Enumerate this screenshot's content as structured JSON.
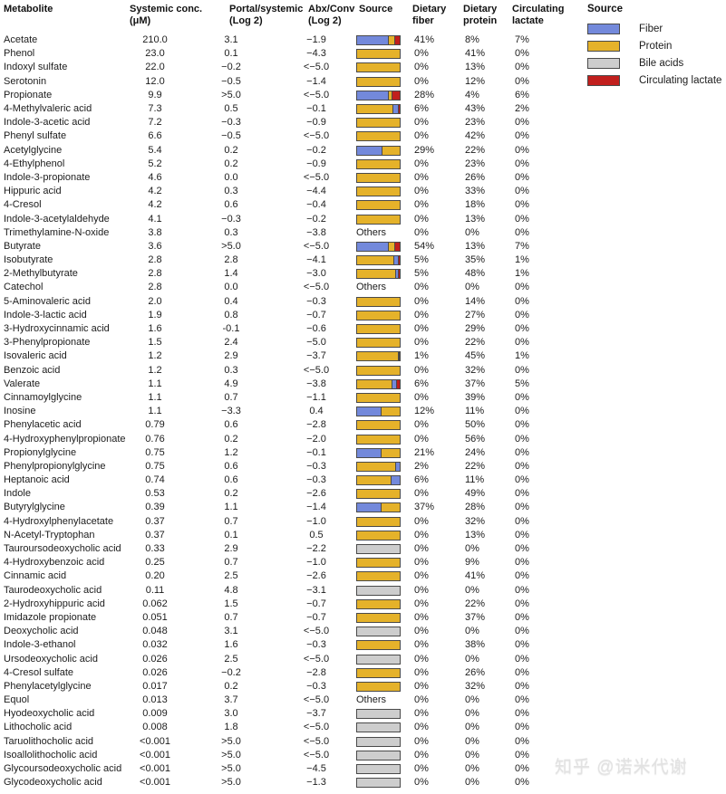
{
  "columns": [
    {
      "label": "Metabolite"
    },
    {
      "label": "Systemic conc.\n(μM)"
    },
    {
      "label": "Portal/systemic\n(Log 2)"
    },
    {
      "label": "Abx/Conv\n(Log 2)"
    },
    {
      "label": "Source"
    },
    {
      "label": "Dietary\nfiber"
    },
    {
      "label": "Dietary\nprotein"
    },
    {
      "label": "Circulating\nlactate"
    }
  ],
  "legend": {
    "title": "Source",
    "items": [
      {
        "label": "Fiber",
        "color": "#7389DB"
      },
      {
        "label": "Protein",
        "color": "#E5B22A"
      },
      {
        "label": "Bile acids",
        "color": "#CDCDCD"
      },
      {
        "label": "Circulating lactate",
        "color": "#C11F1D"
      }
    ]
  },
  "watermark": {
    "text": "知乎 @诺米代谢"
  },
  "chart_data": {
    "type": "table",
    "description": "Metabolite table with horizontal stacked source-fraction bars",
    "source_colors": {
      "fiber": "#7389DB",
      "protein": "#E5B22A",
      "bile": "#CDCDCD",
      "lactate": "#C11F1D"
    },
    "columns": [
      "Metabolite",
      "Systemic conc. (μM)",
      "Portal/systemic (Log 2)",
      "Abx/Conv (Log 2)",
      "Source",
      "Dietary fiber",
      "Dietary protein",
      "Circulating lactate"
    ],
    "rows": [
      {
        "name": "Acetate",
        "conc": "210.0",
        "portal": "3.1",
        "abx": "−1.9",
        "source": "bar",
        "segments": [
          [
            "fiber",
            72
          ],
          [
            "protein",
            15
          ],
          [
            "lactate",
            13
          ]
        ],
        "fiber": "41%",
        "protein": "8%",
        "lactate": "7%"
      },
      {
        "name": "Phenol",
        "conc": "23.0",
        "portal": "0.1",
        "abx": "−4.3",
        "source": "bar",
        "segments": [
          [
            "protein",
            100
          ]
        ],
        "fiber": "0%",
        "protein": "41%",
        "lactate": "0%"
      },
      {
        "name": "Indoxyl sulfate",
        "conc": "22.0",
        "portal": "−0.2",
        "abx": "<−5.0",
        "source": "bar",
        "segments": [
          [
            "protein",
            100
          ]
        ],
        "fiber": "0%",
        "protein": "13%",
        "lactate": "0%"
      },
      {
        "name": "Serotonin",
        "conc": "12.0",
        "portal": "−0.5",
        "abx": "−1.4",
        "source": "bar",
        "segments": [
          [
            "protein",
            100
          ]
        ],
        "fiber": "0%",
        "protein": "12%",
        "lactate": "0%"
      },
      {
        "name": "Propionate",
        "conc": "9.9",
        "portal": ">5.0",
        "abx": "<−5.0",
        "source": "bar",
        "segments": [
          [
            "fiber",
            72
          ],
          [
            "protein",
            8
          ],
          [
            "lactate",
            20
          ]
        ],
        "fiber": "28%",
        "protein": "4%",
        "lactate": "6%"
      },
      {
        "name": "4-Methylvaleric acid",
        "conc": "7.3",
        "portal": "0.5",
        "abx": "−0.1",
        "source": "bar",
        "segments": [
          [
            "protein",
            82
          ],
          [
            "fiber",
            13
          ],
          [
            "lactate",
            5
          ]
        ],
        "fiber": "6%",
        "protein": "43%",
        "lactate": "2%"
      },
      {
        "name": "Indole-3-acetic acid",
        "conc": "7.2",
        "portal": "−0.3",
        "abx": "−0.9",
        "source": "bar",
        "segments": [
          [
            "protein",
            100
          ]
        ],
        "fiber": "0%",
        "protein": "23%",
        "lactate": "0%"
      },
      {
        "name": "Phenyl sulfate",
        "conc": "6.6",
        "portal": "−0.5",
        "abx": "<−5.0",
        "source": "bar",
        "segments": [
          [
            "protein",
            100
          ]
        ],
        "fiber": "0%",
        "protein": "42%",
        "lactate": "0%"
      },
      {
        "name": "Acetylglycine",
        "conc": "5.4",
        "portal": "0.2",
        "abx": "−0.2",
        "source": "bar",
        "segments": [
          [
            "fiber",
            58
          ],
          [
            "protein",
            42
          ]
        ],
        "fiber": "29%",
        "protein": "22%",
        "lactate": "0%"
      },
      {
        "name": "4-Ethylphenol",
        "conc": "5.2",
        "portal": "0.2",
        "abx": "−0.9",
        "source": "bar",
        "segments": [
          [
            "protein",
            100
          ]
        ],
        "fiber": "0%",
        "protein": "23%",
        "lactate": "0%"
      },
      {
        "name": "Indole-3-propionate",
        "conc": "4.6",
        "portal": "0.0",
        "abx": "<−5.0",
        "source": "bar",
        "segments": [
          [
            "protein",
            100
          ]
        ],
        "fiber": "0%",
        "protein": "26%",
        "lactate": "0%"
      },
      {
        "name": "Hippuric acid",
        "conc": "4.2",
        "portal": "0.3",
        "abx": "−4.4",
        "source": "bar",
        "segments": [
          [
            "protein",
            100
          ]
        ],
        "fiber": "0%",
        "protein": "33%",
        "lactate": "0%"
      },
      {
        "name": "4-Cresol",
        "conc": "4.2",
        "portal": "0.6",
        "abx": "−0.4",
        "source": "bar",
        "segments": [
          [
            "protein",
            100
          ]
        ],
        "fiber": "0%",
        "protein": "18%",
        "lactate": "0%"
      },
      {
        "name": "Indole-3-acetylaldehyde",
        "conc": "4.1",
        "portal": "−0.3",
        "abx": "−0.2",
        "source": "bar",
        "segments": [
          [
            "protein",
            100
          ]
        ],
        "fiber": "0%",
        "protein": "13%",
        "lactate": "0%"
      },
      {
        "name": "Trimethylamine-N-oxide",
        "conc": "3.8",
        "portal": "0.3",
        "abx": "−3.8",
        "source": "Others",
        "segments": [],
        "fiber": "0%",
        "protein": "0%",
        "lactate": "0%"
      },
      {
        "name": "Butyrate",
        "conc": "3.6",
        "portal": ">5.0",
        "abx": "<−5.0",
        "source": "bar",
        "segments": [
          [
            "fiber",
            72
          ],
          [
            "protein",
            16
          ],
          [
            "lactate",
            12
          ]
        ],
        "fiber": "54%",
        "protein": "13%",
        "lactate": "7%"
      },
      {
        "name": "Isobutyrate",
        "conc": "2.8",
        "portal": "2.8",
        "abx": "−4.1",
        "source": "bar",
        "segments": [
          [
            "protein",
            85
          ],
          [
            "fiber",
            10
          ],
          [
            "lactate",
            5
          ]
        ],
        "fiber": "5%",
        "protein": "35%",
        "lactate": "1%"
      },
      {
        "name": "2-Methylbutyrate",
        "conc": "2.8",
        "portal": "1.4",
        "abx": "−3.0",
        "source": "bar",
        "segments": [
          [
            "protein",
            90
          ],
          [
            "fiber",
            6
          ],
          [
            "lactate",
            4
          ]
        ],
        "fiber": "5%",
        "protein": "48%",
        "lactate": "1%"
      },
      {
        "name": "Catechol",
        "conc": "2.8",
        "portal": "0.0",
        "abx": "<−5.0",
        "source": "Others",
        "segments": [],
        "fiber": "0%",
        "protein": "0%",
        "lactate": "0%"
      },
      {
        "name": "5-Aminovaleric acid",
        "conc": "2.0",
        "portal": "0.4",
        "abx": "−0.3",
        "source": "bar",
        "segments": [
          [
            "protein",
            100
          ]
        ],
        "fiber": "0%",
        "protein": "14%",
        "lactate": "0%"
      },
      {
        "name": "Indole-3-lactic acid",
        "conc": "1.9",
        "portal": "0.8",
        "abx": "−0.7",
        "source": "bar",
        "segments": [
          [
            "protein",
            100
          ]
        ],
        "fiber": "0%",
        "protein": "27%",
        "lactate": "0%"
      },
      {
        "name": "3-Hydroxycinnamic acid",
        "conc": "1.6",
        "portal": "-0.1",
        "abx": "−0.6",
        "source": "bar",
        "segments": [
          [
            "protein",
            100
          ]
        ],
        "fiber": "0%",
        "protein": "29%",
        "lactate": "0%"
      },
      {
        "name": "3-Phenylpropionate",
        "conc": "1.5",
        "portal": "2.4",
        "abx": "−5.0",
        "source": "bar",
        "segments": [
          [
            "protein",
            100
          ]
        ],
        "fiber": "0%",
        "protein": "22%",
        "lactate": "0%"
      },
      {
        "name": "Isovaleric acid",
        "conc": "1.2",
        "portal": "2.9",
        "abx": "−3.7",
        "source": "bar",
        "segments": [
          [
            "protein",
            95
          ],
          [
            "fiber",
            3
          ],
          [
            "lactate",
            2
          ]
        ],
        "fiber": "1%",
        "protein": "45%",
        "lactate": "1%"
      },
      {
        "name": "Benzoic acid",
        "conc": "1.2",
        "portal": "0.3",
        "abx": "<−5.0",
        "source": "bar",
        "segments": [
          [
            "protein",
            100
          ]
        ],
        "fiber": "0%",
        "protein": "32%",
        "lactate": "0%"
      },
      {
        "name": "Valerate",
        "conc": "1.1",
        "portal": "4.9",
        "abx": "−3.8",
        "source": "bar",
        "segments": [
          [
            "protein",
            80
          ],
          [
            "fiber",
            12
          ],
          [
            "lactate",
            8
          ]
        ],
        "fiber": "6%",
        "protein": "37%",
        "lactate": "5%"
      },
      {
        "name": "Cinnamoylglycine",
        "conc": "1.1",
        "portal": "0.7",
        "abx": "−1.1",
        "source": "bar",
        "segments": [
          [
            "protein",
            100
          ]
        ],
        "fiber": "0%",
        "protein": "39%",
        "lactate": "0%"
      },
      {
        "name": "Inosine",
        "conc": "1.1",
        "portal": "−3.3",
        "abx": "0.4",
        "source": "bar",
        "segments": [
          [
            "fiber",
            55
          ],
          [
            "protein",
            45
          ]
        ],
        "fiber": "12%",
        "protein": "11%",
        "lactate": "0%"
      },
      {
        "name": "Phenylacetic acid",
        "conc": "0.79",
        "portal": "0.6",
        "abx": "−2.8",
        "source": "bar",
        "segments": [
          [
            "protein",
            100
          ]
        ],
        "fiber": "0%",
        "protein": "50%",
        "lactate": "0%"
      },
      {
        "name": "4-Hydroxyphenylpropionate",
        "conc": "0.76",
        "portal": "0.2",
        "abx": "−2.0",
        "source": "bar",
        "segments": [
          [
            "protein",
            100
          ]
        ],
        "fiber": "0%",
        "protein": "56%",
        "lactate": "0%"
      },
      {
        "name": "Propionylglycine",
        "conc": "0.75",
        "portal": "1.2",
        "abx": "−0.1",
        "source": "bar",
        "segments": [
          [
            "fiber",
            55
          ],
          [
            "protein",
            45
          ]
        ],
        "fiber": "21%",
        "protein": "24%",
        "lactate": "0%"
      },
      {
        "name": "Phenylpropionylglycine",
        "conc": "0.75",
        "portal": "0.6",
        "abx": "−0.3",
        "source": "bar",
        "segments": [
          [
            "protein",
            90
          ],
          [
            "fiber",
            10
          ]
        ],
        "fiber": "2%",
        "protein": "22%",
        "lactate": "0%"
      },
      {
        "name": "Heptanoic acid",
        "conc": "0.74",
        "portal": "0.6",
        "abx": "−0.3",
        "source": "bar",
        "segments": [
          [
            "protein",
            78
          ],
          [
            "fiber",
            22
          ]
        ],
        "fiber": "6%",
        "protein": "11%",
        "lactate": "0%"
      },
      {
        "name": "Indole",
        "conc": "0.53",
        "portal": "0.2",
        "abx": "−2.6",
        "source": "bar",
        "segments": [
          [
            "protein",
            100
          ]
        ],
        "fiber": "0%",
        "protein": "49%",
        "lactate": "0%"
      },
      {
        "name": "Butyrylglycine",
        "conc": "0.39",
        "portal": "1.1",
        "abx": "−1.4",
        "source": "bar",
        "segments": [
          [
            "fiber",
            55
          ],
          [
            "protein",
            45
          ]
        ],
        "fiber": "37%",
        "protein": "28%",
        "lactate": "0%"
      },
      {
        "name": "4-Hydroxylphenylacetate",
        "conc": "0.37",
        "portal": "0.7",
        "abx": "−1.0",
        "source": "bar",
        "segments": [
          [
            "protein",
            100
          ]
        ],
        "fiber": "0%",
        "protein": "32%",
        "lactate": "0%"
      },
      {
        "name": "N-Acetyl-Tryptophan",
        "conc": "0.37",
        "portal": "0.1",
        "abx": "0.5",
        "source": "bar",
        "segments": [
          [
            "protein",
            100
          ]
        ],
        "fiber": "0%",
        "protein": "13%",
        "lactate": "0%"
      },
      {
        "name": "Tauroursodeoxycholic acid",
        "conc": "0.33",
        "portal": "2.9",
        "abx": "−2.2",
        "source": "bar",
        "segments": [
          [
            "bile",
            100
          ]
        ],
        "fiber": "0%",
        "protein": "0%",
        "lactate": "0%"
      },
      {
        "name": "4-Hydroxybenzoic acid",
        "conc": "0.25",
        "portal": "0.7",
        "abx": "−1.0",
        "source": "bar",
        "segments": [
          [
            "protein",
            100
          ]
        ],
        "fiber": "0%",
        "protein": "9%",
        "lactate": "0%"
      },
      {
        "name": "Cinnamic acid",
        "conc": "0.20",
        "portal": "2.5",
        "abx": "−2.6",
        "source": "bar",
        "segments": [
          [
            "protein",
            100
          ]
        ],
        "fiber": "0%",
        "protein": "41%",
        "lactate": "0%"
      },
      {
        "name": "Taurodeoxycholic acid",
        "conc": "0.11",
        "portal": "4.8",
        "abx": "−3.1",
        "source": "bar",
        "segments": [
          [
            "bile",
            100
          ]
        ],
        "fiber": "0%",
        "protein": "0%",
        "lactate": "0%"
      },
      {
        "name": "2-Hydroxyhippuric acid",
        "conc": "0.062",
        "portal": "1.5",
        "abx": "−0.7",
        "source": "bar",
        "segments": [
          [
            "protein",
            100
          ]
        ],
        "fiber": "0%",
        "protein": "22%",
        "lactate": "0%"
      },
      {
        "name": "Imidazole propionate",
        "conc": "0.051",
        "portal": "0.7",
        "abx": "−0.7",
        "source": "bar",
        "segments": [
          [
            "protein",
            100
          ]
        ],
        "fiber": "0%",
        "protein": "37%",
        "lactate": "0%"
      },
      {
        "name": "Deoxycholic acid",
        "conc": "0.048",
        "portal": "3.1",
        "abx": "<−5.0",
        "source": "bar",
        "segments": [
          [
            "bile",
            100
          ]
        ],
        "fiber": "0%",
        "protein": "0%",
        "lactate": "0%"
      },
      {
        "name": "Indole-3-ethanol",
        "conc": "0.032",
        "portal": "1.6",
        "abx": "−0.3",
        "source": "bar",
        "segments": [
          [
            "protein",
            100
          ]
        ],
        "fiber": "0%",
        "protein": "38%",
        "lactate": "0%"
      },
      {
        "name": "Ursodeoxycholic acid",
        "conc": "0.026",
        "portal": "2.5",
        "abx": "<−5.0",
        "source": "bar",
        "segments": [
          [
            "bile",
            100
          ]
        ],
        "fiber": "0%",
        "protein": "0%",
        "lactate": "0%"
      },
      {
        "name": "4-Cresol sulfate",
        "conc": "0.026",
        "portal": "−0.2",
        "abx": "−2.8",
        "source": "bar",
        "segments": [
          [
            "protein",
            100
          ]
        ],
        "fiber": "0%",
        "protein": "26%",
        "lactate": "0%"
      },
      {
        "name": "Phenylacetylglycine",
        "conc": "0.017",
        "portal": "0.2",
        "abx": "−0.3",
        "source": "bar",
        "segments": [
          [
            "protein",
            100
          ]
        ],
        "fiber": "0%",
        "protein": "32%",
        "lactate": "0%"
      },
      {
        "name": "Equol",
        "conc": "0.013",
        "portal": "3.7",
        "abx": "<−5.0",
        "source": "Others",
        "segments": [],
        "fiber": "0%",
        "protein": "0%",
        "lactate": "0%"
      },
      {
        "name": "Hyodeoxycholic acid",
        "conc": "0.009",
        "portal": "3.0",
        "abx": "−3.7",
        "source": "bar",
        "segments": [
          [
            "bile",
            100
          ]
        ],
        "fiber": "0%",
        "protein": "0%",
        "lactate": "0%"
      },
      {
        "name": "Lithocholic acid",
        "conc": "0.008",
        "portal": "1.8",
        "abx": "<−5.0",
        "source": "bar",
        "segments": [
          [
            "bile",
            100
          ]
        ],
        "fiber": "0%",
        "protein": "0%",
        "lactate": "0%"
      },
      {
        "name": "Taruolithocholic acid",
        "conc": "<0.001",
        "portal": ">5.0",
        "abx": "<−5.0",
        "source": "bar",
        "segments": [
          [
            "bile",
            100
          ]
        ],
        "fiber": "0%",
        "protein": "0%",
        "lactate": "0%"
      },
      {
        "name": "Isoallolithocholic acid",
        "conc": "<0.001",
        "portal": ">5.0",
        "abx": "<−5.0",
        "source": "bar",
        "segments": [
          [
            "bile",
            100
          ]
        ],
        "fiber": "0%",
        "protein": "0%",
        "lactate": "0%"
      },
      {
        "name": "Glycoursodeoxycholic acid",
        "conc": "<0.001",
        "portal": ">5.0",
        "abx": "−4.5",
        "source": "bar",
        "segments": [
          [
            "bile",
            100
          ]
        ],
        "fiber": "0%",
        "protein": "0%",
        "lactate": "0%"
      },
      {
        "name": "Glycodeoxycholic acid",
        "conc": "<0.001",
        "portal": ">5.0",
        "abx": "−1.3",
        "source": "bar",
        "segments": [
          [
            "bile",
            100
          ]
        ],
        "fiber": "0%",
        "protein": "0%",
        "lactate": "0%"
      }
    ]
  }
}
